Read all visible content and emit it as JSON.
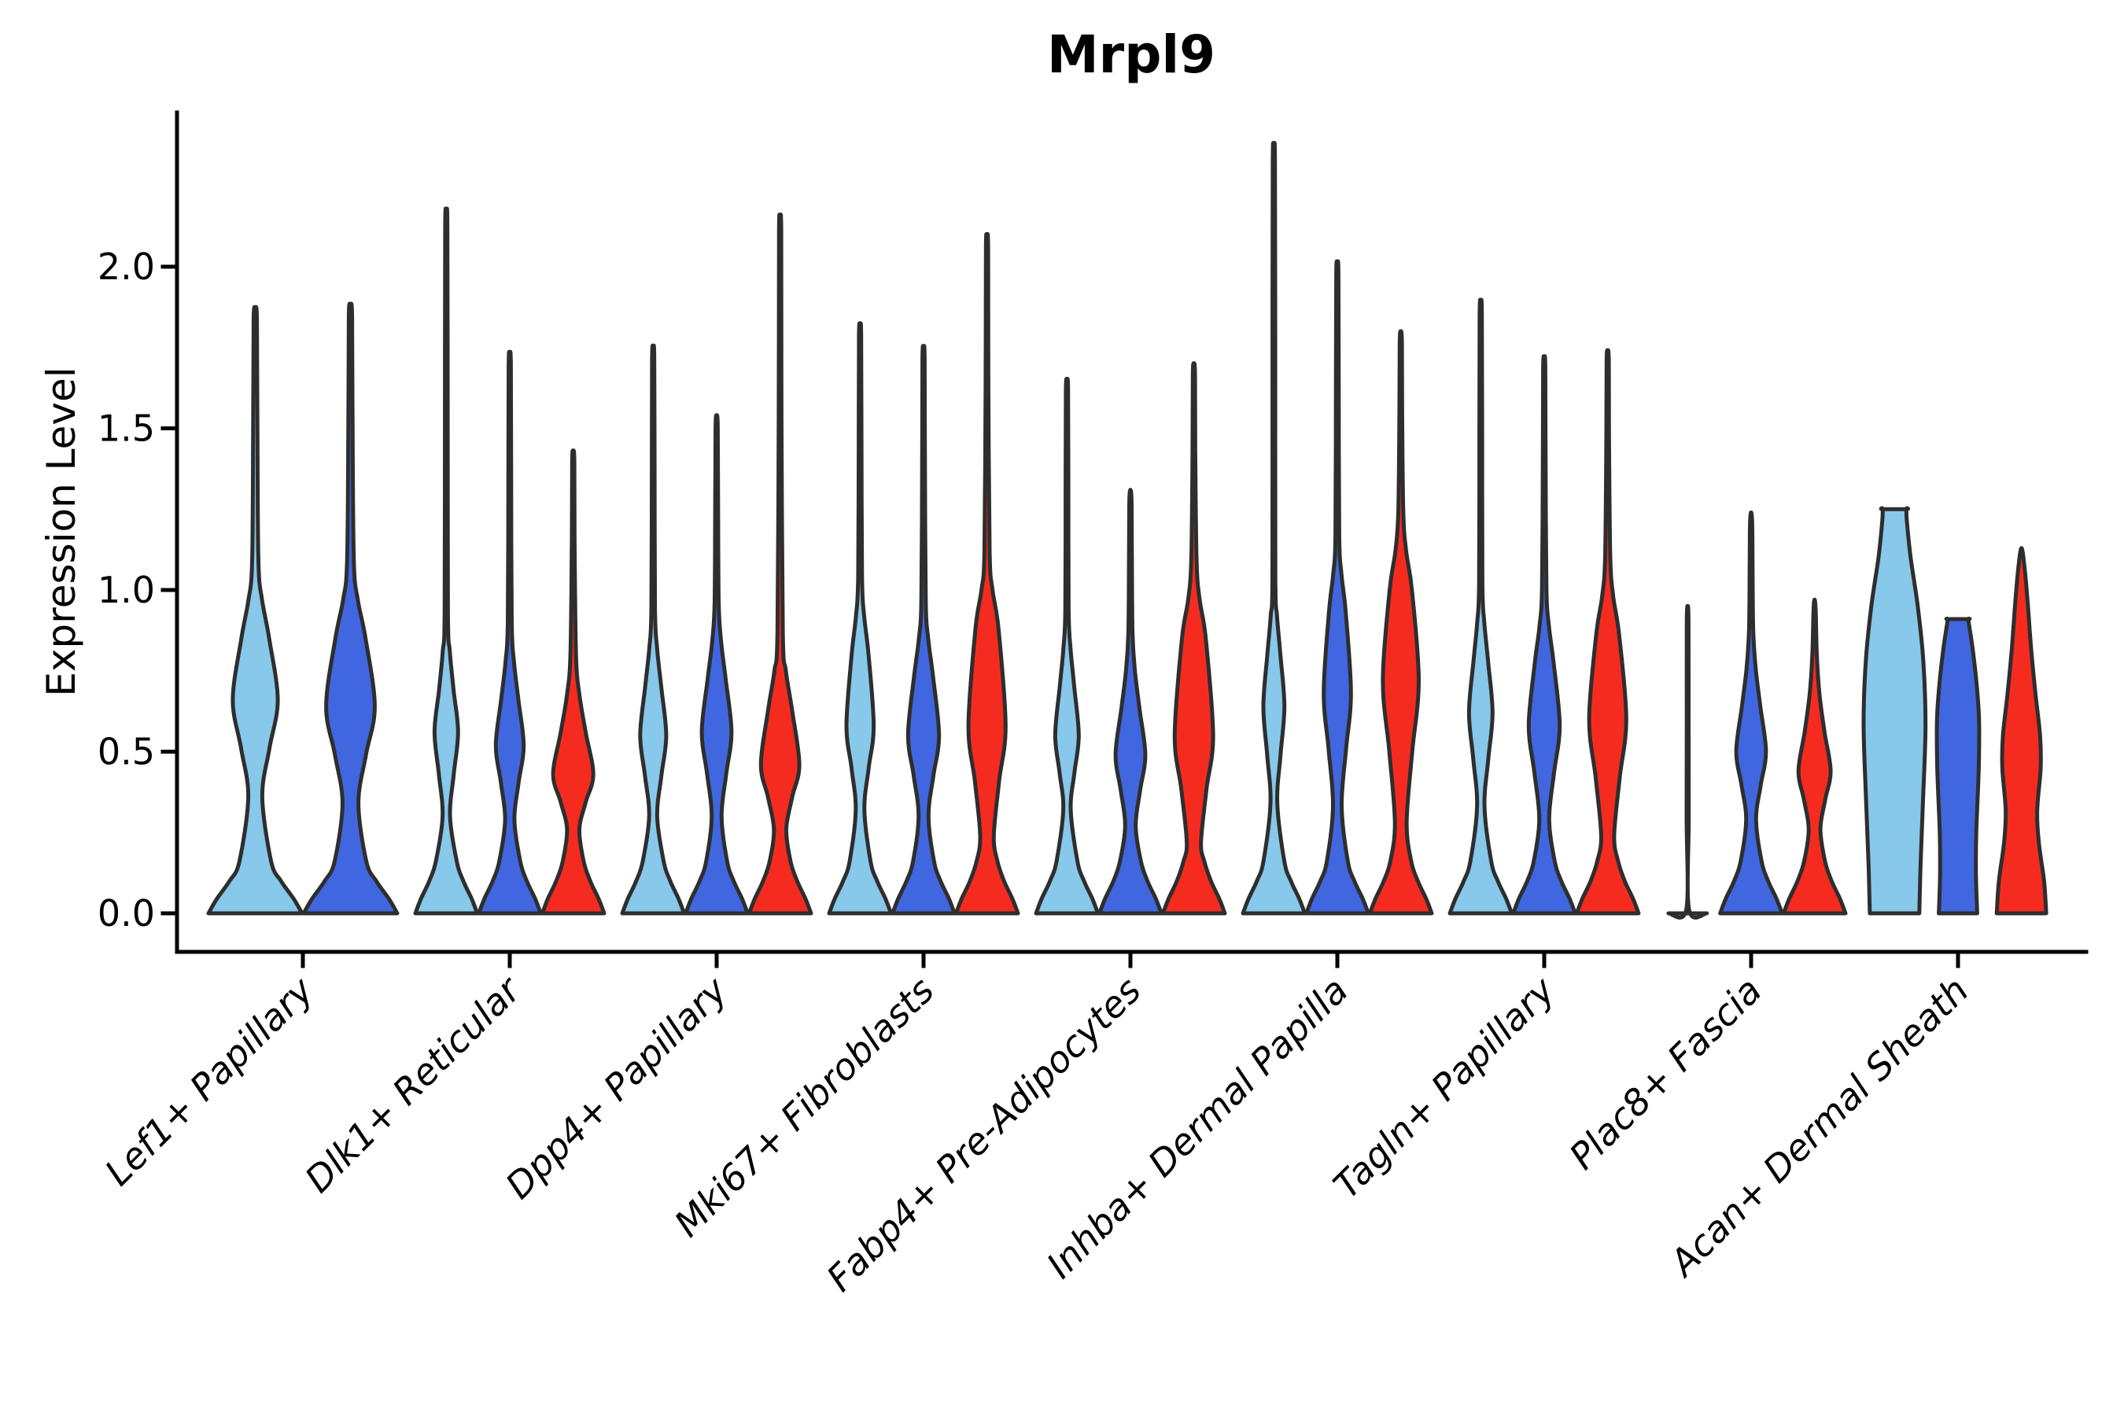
{
  "chart_data": {
    "type": "violin",
    "title": "Mrpl9",
    "ylabel": "Expression Level",
    "xlabel": "",
    "ylim": [
      -0.12,
      2.48
    ],
    "grid": false,
    "legend": "none",
    "yticks": [
      {
        "label": "0.0",
        "value": 0.0
      },
      {
        "label": "0.5",
        "value": 0.5
      },
      {
        "label": "1.0",
        "value": 1.0
      },
      {
        "label": "1.5",
        "value": 1.5
      },
      {
        "label": "2.0",
        "value": 2.0
      }
    ],
    "colors": {
      "c1": "#87C8EB",
      "c2": "#4067E0",
      "c3": "#F62B20",
      "outline": "#2E2E2E",
      "axis": "#000000"
    },
    "categories": [
      "Lef1+ Papillary",
      "Dlk1+ Reticular",
      "Dpp4+ Papillary",
      "Mki67+ Fibroblasts",
      "Fabp4+ Pre-Adipocytes",
      "Inhba+ Dermal Papilla",
      "Tagln+ Papillary",
      "Plac8+ Fascia",
      "Acan+ Dermal Sheath"
    ],
    "groups": [
      {
        "category": "Lef1+ Papillary",
        "violins": [
          {
            "color": "c1",
            "shape": "tail",
            "max": 1.87,
            "waist": [
              0.36,
              0.15
            ],
            "bulge": [
              0.66,
              0.48,
              0.85
            ]
          },
          {
            "color": "c2",
            "shape": "tail",
            "max": 1.88,
            "waist": [
              0.34,
              0.17
            ],
            "bulge": [
              0.64,
              0.52,
              0.85
            ]
          }
        ]
      },
      {
        "category": "Dlk1+ Reticular",
        "violins": [
          {
            "color": "c1",
            "shape": "tail",
            "max": 2.16,
            "waist": [
              0.3,
              0.12
            ],
            "bulge": [
              0.56,
              0.38,
              0.69
            ]
          },
          {
            "color": "c2",
            "shape": "tail",
            "max": 1.73,
            "waist": [
              0.29,
              0.15
            ],
            "bulge": [
              0.52,
              0.45,
              0.66
            ]
          },
          {
            "color": "c3",
            "shape": "tail",
            "max": 1.43,
            "waist": [
              0.26,
              0.2
            ],
            "bulge": [
              0.43,
              0.65,
              0.56
            ]
          }
        ]
      },
      {
        "category": "Dpp4+ Papillary",
        "violins": [
          {
            "color": "c1",
            "shape": "tail",
            "max": 1.75,
            "waist": [
              0.3,
              0.13
            ],
            "bulge": [
              0.55,
              0.42,
              0.7
            ]
          },
          {
            "color": "c2",
            "shape": "tail",
            "max": 1.54,
            "waist": [
              0.3,
              0.16
            ],
            "bulge": [
              0.56,
              0.48,
              0.72
            ]
          },
          {
            "color": "c3",
            "shape": "tail",
            "max": 2.14,
            "waist": [
              0.26,
              0.2
            ],
            "bulge": [
              0.46,
              0.62,
              0.63
            ]
          }
        ]
      },
      {
        "category": "Mki67+ Fibroblasts",
        "violins": [
          {
            "color": "c1",
            "shape": "tail",
            "max": 1.82,
            "waist": [
              0.32,
              0.14
            ],
            "bulge": [
              0.58,
              0.44,
              0.8
            ]
          },
          {
            "color": "c2",
            "shape": "tail",
            "max": 1.75,
            "waist": [
              0.3,
              0.16
            ],
            "bulge": [
              0.55,
              0.5,
              0.73
            ]
          },
          {
            "color": "c3",
            "shape": "tail",
            "max": 2.09,
            "waist": [
              0.24,
              0.22
            ],
            "bulge": [
              0.58,
              0.6,
              0.88
            ]
          }
        ]
      },
      {
        "category": "Fabp4+ Pre-Adipocytes",
        "violins": [
          {
            "color": "c1",
            "shape": "tail",
            "max": 1.65,
            "waist": [
              0.32,
              0.12
            ],
            "bulge": [
              0.55,
              0.38,
              0.7
            ]
          },
          {
            "color": "c2",
            "shape": "tail",
            "max": 1.31,
            "waist": [
              0.27,
              0.17
            ],
            "bulge": [
              0.49,
              0.48,
              0.63
            ]
          },
          {
            "color": "c3",
            "shape": "tail",
            "max": 1.7,
            "waist": [
              0.22,
              0.23
            ],
            "bulge": [
              0.55,
              0.62,
              0.85
            ]
          }
        ]
      },
      {
        "category": "Inhba+ Dermal Papilla",
        "violins": [
          {
            "color": "c1",
            "shape": "tail",
            "max": 2.36,
            "waist": [
              0.34,
              0.11
            ],
            "bulge": [
              0.64,
              0.34,
              0.8
            ]
          },
          {
            "color": "c2",
            "shape": "tail",
            "max": 2.01,
            "waist": [
              0.33,
              0.14
            ],
            "bulge": [
              0.68,
              0.44,
              0.93
            ]
          },
          {
            "color": "c3",
            "shape": "tail",
            "max": 1.8,
            "waist": [
              0.28,
              0.19
            ],
            "bulge": [
              0.72,
              0.58,
              1.0
            ]
          }
        ]
      },
      {
        "category": "Tagln+ Papillary",
        "violins": [
          {
            "color": "c1",
            "shape": "tail",
            "max": 1.89,
            "waist": [
              0.33,
              0.12
            ],
            "bulge": [
              0.62,
              0.38,
              0.78
            ]
          },
          {
            "color": "c2",
            "shape": "tail",
            "max": 1.72,
            "waist": [
              0.29,
              0.16
            ],
            "bulge": [
              0.58,
              0.5,
              0.77
            ]
          },
          {
            "color": "c3",
            "shape": "tail",
            "max": 1.74,
            "waist": [
              0.24,
              0.21
            ],
            "bulge": [
              0.6,
              0.6,
              0.86
            ]
          }
        ]
      },
      {
        "category": "Plac8+ Fascia",
        "violins": [
          {
            "color": "c1",
            "shape": "line",
            "max": 0.95
          },
          {
            "color": "c2",
            "shape": "tail",
            "max": 1.24,
            "waist": [
              0.29,
              0.16
            ],
            "bulge": [
              0.5,
              0.48,
              0.64
            ]
          },
          {
            "color": "c3",
            "shape": "tail",
            "max": 0.97,
            "waist": [
              0.26,
              0.19
            ],
            "bulge": [
              0.44,
              0.52,
              0.56
            ]
          }
        ]
      },
      {
        "category": "Acan+ Dermal Sheath",
        "violins": [
          {
            "color": "c1",
            "shape": "block",
            "max": 1.25,
            "flat_top": true,
            "profile": [
              [
                0,
                0.8
              ],
              [
                0.15,
                0.84
              ],
              [
                0.35,
                0.92
              ],
              [
                0.58,
                1.0
              ],
              [
                0.78,
                0.93
              ],
              [
                0.95,
                0.75
              ],
              [
                1.1,
                0.52
              ],
              [
                1.21,
                0.4
              ],
              [
                1.25,
                0.38
              ]
            ]
          },
          {
            "color": "c2",
            "shape": "block",
            "max": 0.91,
            "flat_top": true,
            "profile": [
              [
                0,
                0.62
              ],
              [
                0.12,
                0.58
              ],
              [
                0.25,
                0.59
              ],
              [
                0.45,
                0.67
              ],
              [
                0.6,
                0.68
              ],
              [
                0.72,
                0.59
              ],
              [
                0.82,
                0.47
              ],
              [
                0.89,
                0.36
              ],
              [
                0.91,
                0.33
              ]
            ]
          },
          {
            "color": "c3",
            "shape": "block",
            "max": 1.13,
            "flat_top": false,
            "profile": [
              [
                0,
                0.8
              ],
              [
                0.1,
                0.73
              ],
              [
                0.22,
                0.56
              ],
              [
                0.32,
                0.51
              ],
              [
                0.45,
                0.62
              ],
              [
                0.55,
                0.6
              ],
              [
                0.68,
                0.45
              ],
              [
                0.82,
                0.31
              ],
              [
                0.95,
                0.21
              ],
              [
                1.06,
                0.11
              ],
              [
                1.13,
                0
              ]
            ]
          }
        ]
      }
    ]
  }
}
